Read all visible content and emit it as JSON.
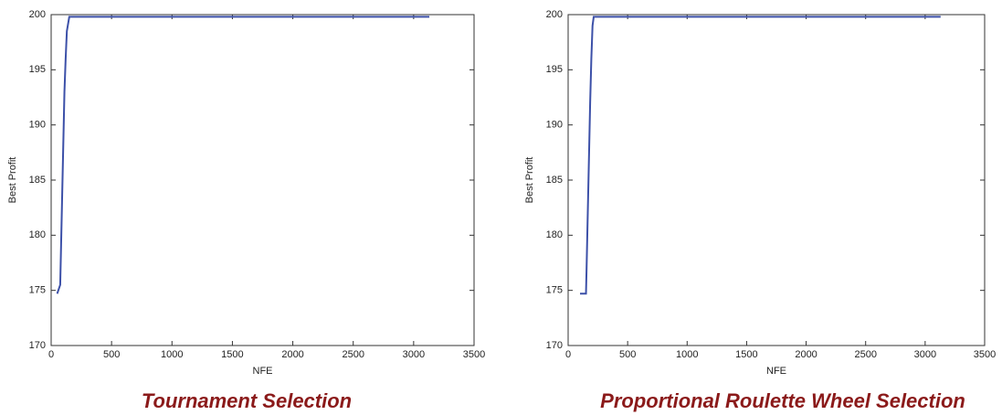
{
  "chart_data": [
    {
      "type": "line",
      "title": "Tournament Selection",
      "x_label": "NFE",
      "y_label": "Best Profit",
      "x": [
        50,
        75,
        80,
        90,
        100,
        110,
        120,
        130,
        150,
        3130
      ],
      "values": [
        174.7,
        175.5,
        178,
        183,
        188,
        193,
        196,
        198.5,
        199.8,
        199.8
      ],
      "color": "#3c50a8",
      "xlim": [
        0,
        3500
      ],
      "xticks": [
        0,
        500,
        1000,
        1500,
        2000,
        2500,
        3000,
        3500
      ],
      "ylim": [
        170,
        200
      ],
      "yticks": [
        170,
        175,
        180,
        185,
        190,
        195,
        200
      ]
    },
    {
      "type": "line",
      "title": "Proportional Roulette Wheel Selection",
      "x_label": "NFE",
      "y_label": "Best Profit",
      "x": [
        100,
        150,
        155,
        165,
        175,
        185,
        195,
        205,
        215,
        3130
      ],
      "values": [
        174.7,
        174.7,
        177,
        182,
        187,
        192,
        196,
        199,
        199.8,
        199.8
      ],
      "color": "#3c50a8",
      "xlim": [
        0,
        3500
      ],
      "xticks": [
        0,
        500,
        1000,
        1500,
        2000,
        2500,
        3000,
        3500
      ],
      "ylim": [
        170,
        200
      ],
      "yticks": [
        170,
        175,
        180,
        185,
        190,
        195,
        200
      ]
    }
  ]
}
